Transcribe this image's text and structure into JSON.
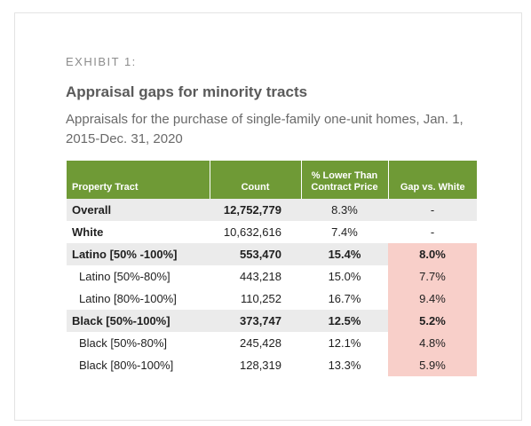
{
  "exhibit_label": "EXHIBIT 1:",
  "title": "Appraisal gaps for minority tracts",
  "subtitle": "Appraisals for the purchase of single-family one-unit homes, Jan. 1, 2015-Dec. 31, 2020",
  "table": {
    "headers": [
      "Property Tract",
      "Count",
      "% Lower Than Contract Price",
      "Gap vs. White"
    ],
    "rows": [
      {
        "tract": "Overall",
        "count": "12,752,779",
        "pct_lower": "8.3%",
        "gap": "-"
      },
      {
        "tract": "White",
        "count": "10,632,616",
        "pct_lower": "7.4%",
        "gap": "-"
      },
      {
        "tract": "Latino [50% -100%]",
        "count": "553,470",
        "pct_lower": "15.4%",
        "gap": "8.0%"
      },
      {
        "tract": "Latino [50%-80%]",
        "count": "443,218",
        "pct_lower": "15.0%",
        "gap": "7.7%"
      },
      {
        "tract": "Latino [80%-100%]",
        "count": "110,252",
        "pct_lower": "16.7%",
        "gap": "9.4%"
      },
      {
        "tract": "Black [50%-100%]",
        "count": "373,747",
        "pct_lower": "12.5%",
        "gap": "5.2%"
      },
      {
        "tract": "Black [50%-80%]",
        "count": "245,428",
        "pct_lower": "12.1%",
        "gap": "4.8%"
      },
      {
        "tract": "Black [80%-100%]",
        "count": "128,319",
        "pct_lower": "13.3%",
        "gap": "5.9%"
      }
    ]
  },
  "colors": {
    "header_green": "#6f9a36",
    "gap_highlight": "#f8cfc9",
    "row_shade": "#ebebeb"
  }
}
